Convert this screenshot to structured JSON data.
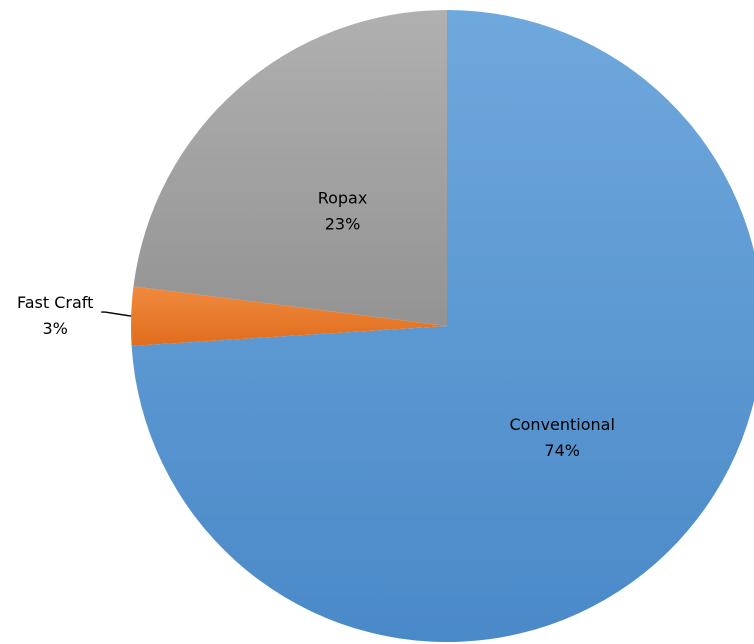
{
  "chart_data": {
    "type": "pie",
    "start_angle_deg": 0,
    "direction": "clockwise",
    "series": [
      {
        "values": [
          74,
          3,
          23
        ],
        "categories": [
          "Conventional",
          "Fast Craft",
          "Ropax"
        ],
        "percent_labels": [
          "74%",
          "3%",
          "23%"
        ],
        "colors": [
          "#5b9bd5",
          "#ed7d31",
          "#a5a5a5"
        ],
        "label_position": [
          "inside",
          "outside",
          "inside"
        ]
      }
    ]
  }
}
